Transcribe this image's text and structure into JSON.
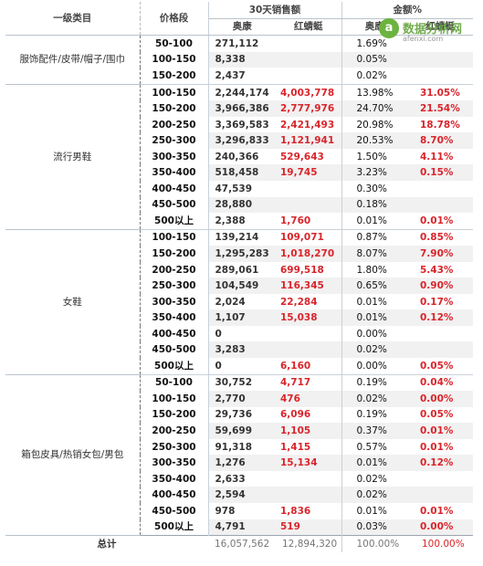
{
  "header": {
    "col_category": "一级类目",
    "col_price": "价格段",
    "col_sales": "30天销售额",
    "col_share": "金额%",
    "sub_aokang": "奥康",
    "sub_redq": "红蜻蜓",
    "sub_aokang2": "奥康",
    "sub_redq2": "红蜻蜓"
  },
  "groups": [
    {
      "name": "服饰配件/皮带/帽子/围巾",
      "rows": [
        {
          "range": "50-100",
          "aokang": "271,112",
          "redq": "",
          "aokang_pct": "1.69%",
          "redq_pct": ""
        },
        {
          "range": "100-150",
          "aokang": "8,338",
          "redq": "",
          "aokang_pct": "0.05%",
          "redq_pct": ""
        },
        {
          "range": "150-200",
          "aokang": "2,437",
          "redq": "",
          "aokang_pct": "0.02%",
          "redq_pct": ""
        }
      ]
    },
    {
      "name": "流行男鞋",
      "rows": [
        {
          "range": "100-150",
          "aokang": "2,244,174",
          "redq": "4,003,778",
          "aokang_pct": "13.98%",
          "redq_pct": "31.05%"
        },
        {
          "range": "150-200",
          "aokang": "3,966,386",
          "redq": "2,777,976",
          "aokang_pct": "24.70%",
          "redq_pct": "21.54%"
        },
        {
          "range": "200-250",
          "aokang": "3,369,583",
          "redq": "2,421,493",
          "aokang_pct": "20.98%",
          "redq_pct": "18.78%"
        },
        {
          "range": "250-300",
          "aokang": "3,296,833",
          "redq": "1,121,941",
          "aokang_pct": "20.53%",
          "redq_pct": "8.70%"
        },
        {
          "range": "300-350",
          "aokang": "240,366",
          "redq": "529,643",
          "aokang_pct": "1.50%",
          "redq_pct": "4.11%"
        },
        {
          "range": "350-400",
          "aokang": "518,458",
          "redq": "19,745",
          "aokang_pct": "3.23%",
          "redq_pct": "0.15%"
        },
        {
          "range": "400-450",
          "aokang": "47,539",
          "redq": "",
          "aokang_pct": "0.30%",
          "redq_pct": ""
        },
        {
          "range": "450-500",
          "aokang": "28,880",
          "redq": "",
          "aokang_pct": "0.18%",
          "redq_pct": ""
        },
        {
          "range": "500以上",
          "aokang": "2,388",
          "redq": "1,760",
          "aokang_pct": "0.01%",
          "redq_pct": "0.01%"
        }
      ]
    },
    {
      "name": "女鞋",
      "rows": [
        {
          "range": "100-150",
          "aokang": "139,214",
          "redq": "109,071",
          "aokang_pct": "0.87%",
          "redq_pct": "0.85%"
        },
        {
          "range": "150-200",
          "aokang": "1,295,283",
          "redq": "1,018,270",
          "aokang_pct": "8.07%",
          "redq_pct": "7.90%"
        },
        {
          "range": "200-250",
          "aokang": "289,061",
          "redq": "699,518",
          "aokang_pct": "1.80%",
          "redq_pct": "5.43%"
        },
        {
          "range": "250-300",
          "aokang": "104,549",
          "redq": "116,345",
          "aokang_pct": "0.65%",
          "redq_pct": "0.90%"
        },
        {
          "range": "300-350",
          "aokang": "2,024",
          "redq": "22,284",
          "aokang_pct": "0.01%",
          "redq_pct": "0.17%"
        },
        {
          "range": "350-400",
          "aokang": "1,107",
          "redq": "15,038",
          "aokang_pct": "0.01%",
          "redq_pct": "0.12%"
        },
        {
          "range": "400-450",
          "aokang": "0",
          "redq": "",
          "aokang_pct": "0.00%",
          "redq_pct": ""
        },
        {
          "range": "450-500",
          "aokang": "3,283",
          "redq": "",
          "aokang_pct": "0.02%",
          "redq_pct": ""
        },
        {
          "range": "500以上",
          "aokang": "0",
          "redq": "6,160",
          "aokang_pct": "0.00%",
          "redq_pct": "0.05%"
        }
      ]
    },
    {
      "name": "箱包皮具/热销女包/男包",
      "rows": [
        {
          "range": "50-100",
          "aokang": "30,752",
          "redq": "4,717",
          "aokang_pct": "0.19%",
          "redq_pct": "0.04%"
        },
        {
          "range": "100-150",
          "aokang": "2,770",
          "redq": "476",
          "aokang_pct": "0.02%",
          "redq_pct": "0.00%"
        },
        {
          "range": "150-200",
          "aokang": "29,736",
          "redq": "6,096",
          "aokang_pct": "0.19%",
          "redq_pct": "0.05%"
        },
        {
          "range": "200-250",
          "aokang": "59,699",
          "redq": "1,105",
          "aokang_pct": "0.37%",
          "redq_pct": "0.01%"
        },
        {
          "range": "250-300",
          "aokang": "91,318",
          "redq": "1,415",
          "aokang_pct": "0.57%",
          "redq_pct": "0.01%"
        },
        {
          "range": "300-350",
          "aokang": "1,276",
          "redq": "15,134",
          "aokang_pct": "0.01%",
          "redq_pct": "0.12%"
        },
        {
          "range": "350-400",
          "aokang": "2,633",
          "redq": "",
          "aokang_pct": "0.02%",
          "redq_pct": ""
        },
        {
          "range": "400-450",
          "aokang": "2,594",
          "redq": "",
          "aokang_pct": "0.02%",
          "redq_pct": ""
        },
        {
          "range": "450-500",
          "aokang": "978",
          "redq": "1,836",
          "aokang_pct": "0.01%",
          "redq_pct": "0.01%"
        },
        {
          "range": "500以上",
          "aokang": "4,791",
          "redq": "519",
          "aokang_pct": "0.03%",
          "redq_pct": "0.00%"
        }
      ]
    }
  ],
  "total": {
    "label": "总计",
    "aokang": "16,057,562",
    "redq": "12,894,320",
    "aokang_pct": "100.00%",
    "redq_pct": "100.00%"
  },
  "watermark": {
    "brand": "数据分析网",
    "url": "afenxi.com",
    "logo_glyph": "a"
  },
  "colors": {
    "highlight_red": "#d9252b",
    "row_gray": "#f1f1f1",
    "watermark_green": "#6db33f"
  }
}
